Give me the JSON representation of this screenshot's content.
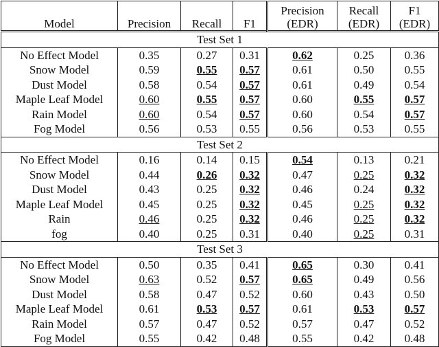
{
  "table": {
    "header": [
      "Model",
      "Precision",
      "Recall",
      "F1",
      "Precision\n(EDR)",
      "Recall\n(EDR)",
      "F1\n(EDR)"
    ],
    "sections": [
      {
        "title": "Test Set 1",
        "rows": [
          [
            "No Effect Model",
            "0.35",
            "0.27",
            "0.31",
            {
              "text": "0.62",
              "bold": true,
              "underline": true
            },
            "0.25",
            "0.36"
          ],
          [
            "Snow Model",
            "0.59",
            {
              "text": "0.55",
              "bold": true,
              "underline": true
            },
            {
              "text": "0.57",
              "bold": true,
              "underline": true
            },
            "0.61",
            "0.50",
            "0.55"
          ],
          [
            "Dust Model",
            "0.58",
            "0.54",
            {
              "text": "0.57",
              "bold": true,
              "underline": true
            },
            "0.61",
            "0.49",
            "0.54"
          ],
          [
            "Maple Leaf Model",
            {
              "text": "0.60",
              "underline": true
            },
            {
              "text": "0.55",
              "bold": true,
              "underline": true
            },
            {
              "text": "0.57",
              "bold": true,
              "underline": true
            },
            "0.60",
            {
              "text": "0.55",
              "bold": true,
              "underline": true
            },
            {
              "text": "0.57",
              "bold": true,
              "underline": true
            }
          ],
          [
            "Rain Model",
            {
              "text": "0.60",
              "underline": true
            },
            "0.54",
            {
              "text": "0.57",
              "bold": true,
              "underline": true
            },
            "0.60",
            "0.54",
            {
              "text": "0.57",
              "bold": true,
              "underline": true
            }
          ],
          [
            "Fog Model",
            "0.56",
            "0.53",
            "0.55",
            "0.56",
            "0.53",
            "0.55"
          ]
        ]
      },
      {
        "title": "Test Set 2",
        "rows": [
          [
            "No Effect Model",
            "0.16",
            "0.14",
            "0.15",
            {
              "text": "0.54",
              "bold": true,
              "underline": true
            },
            "0.13",
            "0.21"
          ],
          [
            "Snow Model",
            "0.44",
            {
              "text": "0.26",
              "bold": true,
              "underline": true
            },
            {
              "text": "0.32",
              "bold": true,
              "underline": true
            },
            "0.47",
            {
              "text": "0.25",
              "underline": true
            },
            {
              "text": "0.32",
              "bold": true,
              "underline": true
            }
          ],
          [
            "Dust Model",
            "0.43",
            "0.25",
            {
              "text": "0.32",
              "bold": true,
              "underline": true
            },
            "0.46",
            "0.24",
            {
              "text": "0.32",
              "bold": true,
              "underline": true
            }
          ],
          [
            "Maple Leaf Model",
            "0.45",
            "0.25",
            {
              "text": "0.32",
              "bold": true,
              "underline": true
            },
            "0.45",
            {
              "text": "0.25",
              "underline": true
            },
            {
              "text": "0.32",
              "bold": true,
              "underline": true
            }
          ],
          [
            "Rain",
            {
              "text": "0.46",
              "underline": true
            },
            "0.25",
            {
              "text": "0.32",
              "bold": true,
              "underline": true
            },
            "0.46",
            {
              "text": "0.25",
              "underline": true
            },
            {
              "text": "0.32",
              "bold": true,
              "underline": true
            }
          ],
          [
            "fog",
            "0.40",
            "0.25",
            "0.31",
            "0.40",
            {
              "text": "0.25",
              "underline": true
            },
            "0.31"
          ]
        ]
      },
      {
        "title": "Test Set 3",
        "rows": [
          [
            "No Effect Model",
            "0.50",
            "0.35",
            "0.41",
            {
              "text": "0.65",
              "bold": true,
              "underline": true
            },
            "0.30",
            "0.41"
          ],
          [
            "Snow Model",
            {
              "text": "0.63",
              "underline": true
            },
            "0.52",
            {
              "text": "0.57",
              "bold": true,
              "underline": true
            },
            {
              "text": "0.65",
              "bold": true,
              "underline": true
            },
            "0.49",
            "0.56"
          ],
          [
            "Dust Model",
            "0.58",
            "0.47",
            "0.52",
            "0.60",
            "0.43",
            "0.50"
          ],
          [
            "Maple Leaf Model",
            "0.61",
            {
              "text": "0.53",
              "bold": true,
              "underline": true
            },
            {
              "text": "0.57",
              "bold": true,
              "underline": true
            },
            "0.61",
            {
              "text": "0.53",
              "bold": true,
              "underline": true
            },
            {
              "text": "0.57",
              "bold": true,
              "underline": true
            }
          ],
          [
            "Rain Model",
            "0.57",
            "0.47",
            "0.52",
            "0.57",
            "0.47",
            "0.52"
          ],
          [
            "Fog Model",
            "0.55",
            "0.42",
            "0.48",
            "0.55",
            "0.42",
            "0.48"
          ]
        ]
      }
    ]
  }
}
